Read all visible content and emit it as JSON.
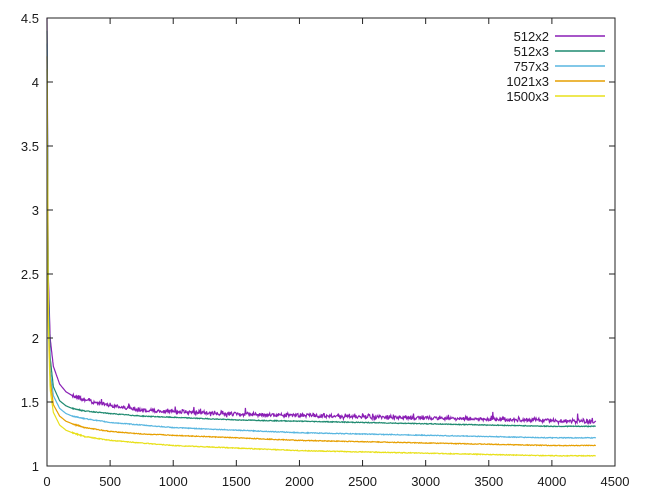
{
  "chart_data": {
    "type": "line",
    "title": "",
    "xlabel": "",
    "ylabel": "",
    "xlim": [
      0,
      4500
    ],
    "ylim": [
      1,
      4.5
    ],
    "xticks": [
      0,
      500,
      1000,
      1500,
      2000,
      2500,
      3000,
      3500,
      4000,
      4500
    ],
    "yticks": [
      1,
      1.5,
      2,
      2.5,
      3,
      3.5,
      4,
      4.5
    ],
    "xtick_labels": [
      "0",
      "500",
      "1000",
      "1500",
      "2000",
      "2500",
      "3000",
      "3500",
      "4000",
      "4500"
    ],
    "ytick_labels": [
      "1",
      "1.5",
      "2",
      "2.5",
      "3",
      "3.5",
      "4",
      "4.5"
    ],
    "grid": false,
    "legend_position": "top-right",
    "series": [
      {
        "name": "512x2",
        "color": "#8a1fb5",
        "noisy": true,
        "x": [
          0,
          10,
          25,
          50,
          100,
          150,
          200,
          300,
          500,
          750,
          1000,
          1500,
          2000,
          2500,
          3000,
          3500,
          4000,
          4350
        ],
        "y": [
          4.5,
          2.5,
          2.0,
          1.78,
          1.64,
          1.58,
          1.55,
          1.51,
          1.47,
          1.43,
          1.42,
          1.4,
          1.39,
          1.38,
          1.37,
          1.36,
          1.35,
          1.34
        ]
      },
      {
        "name": "512x3",
        "color": "#1f8a70",
        "noisy": false,
        "x": [
          0,
          10,
          25,
          50,
          100,
          150,
          200,
          300,
          500,
          750,
          1000,
          1500,
          2000,
          2500,
          3000,
          3500,
          4000,
          4350
        ],
        "y": [
          4.4,
          2.4,
          1.85,
          1.62,
          1.51,
          1.47,
          1.45,
          1.43,
          1.41,
          1.39,
          1.38,
          1.36,
          1.35,
          1.34,
          1.33,
          1.32,
          1.31,
          1.31
        ]
      },
      {
        "name": "757x3",
        "color": "#59b6e0",
        "noisy": false,
        "x": [
          0,
          10,
          25,
          50,
          100,
          150,
          200,
          300,
          500,
          750,
          1000,
          1500,
          2000,
          2500,
          3000,
          3500,
          4000,
          4350
        ],
        "y": [
          4.3,
          2.3,
          1.75,
          1.55,
          1.45,
          1.41,
          1.39,
          1.37,
          1.34,
          1.32,
          1.3,
          1.28,
          1.26,
          1.25,
          1.24,
          1.23,
          1.22,
          1.22
        ]
      },
      {
        "name": "1021x3",
        "color": "#e69f00",
        "noisy": false,
        "x": [
          0,
          10,
          25,
          50,
          100,
          150,
          200,
          300,
          500,
          750,
          1000,
          1500,
          2000,
          2500,
          3000,
          3500,
          4000,
          4350
        ],
        "y": [
          4.2,
          2.2,
          1.68,
          1.48,
          1.39,
          1.35,
          1.33,
          1.3,
          1.27,
          1.25,
          1.24,
          1.22,
          1.2,
          1.19,
          1.18,
          1.17,
          1.16,
          1.16
        ]
      },
      {
        "name": "1500x3",
        "color": "#e8e01a",
        "noisy": false,
        "x": [
          0,
          10,
          25,
          50,
          100,
          150,
          200,
          300,
          500,
          750,
          1000,
          1500,
          2000,
          2500,
          3000,
          3500,
          4000,
          4350
        ],
        "y": [
          4.1,
          2.1,
          1.6,
          1.42,
          1.32,
          1.28,
          1.26,
          1.23,
          1.2,
          1.18,
          1.16,
          1.14,
          1.12,
          1.11,
          1.1,
          1.09,
          1.08,
          1.08
        ]
      }
    ]
  }
}
